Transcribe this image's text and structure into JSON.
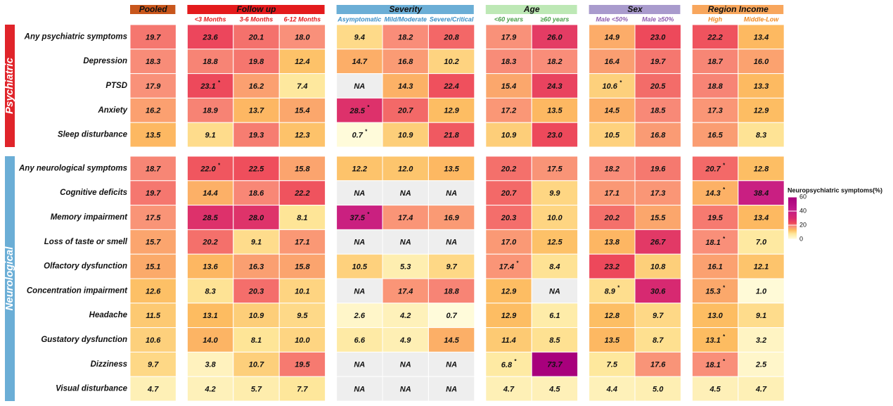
{
  "chart_data": {
    "type": "heatmap",
    "column_groups": [
      {
        "name": "Pooled",
        "color": "#c8561c",
        "label_color": "#111111",
        "columns": [
          null
        ]
      },
      {
        "name": "Follow up",
        "color": "#e41a1c",
        "label_color": "#e41a1c",
        "columns": [
          "<3 Months",
          "3-6 Months",
          "6-12 Months"
        ]
      },
      {
        "name": "Severity",
        "color": "#6baed6",
        "label_color": "#3a8fc7",
        "columns": [
          "Asymptomatic",
          "Mild/Moderate",
          "Severe/Critical"
        ]
      },
      {
        "name": "Age",
        "color": "#bde8b5",
        "label_color": "#4aa04a",
        "columns": [
          "<60 years",
          "≥60 years"
        ]
      },
      {
        "name": "Sex",
        "color": "#a99bcd",
        "label_color": "#8e5fb0",
        "columns": [
          "Male <50%",
          "Male ≥50%"
        ]
      },
      {
        "name": "Region Income",
        "color": "#f8a65c",
        "label_color": "#f08a24",
        "columns": [
          "High",
          "Middle-Low"
        ]
      }
    ],
    "row_groups": [
      {
        "name": "Psychiatric",
        "color": "#e0242a",
        "rows": [
          {
            "name": "Any psychiatric symptoms",
            "values": [
              19.7,
              23.6,
              20.1,
              18.0,
              9.4,
              18.2,
              20.8,
              17.9,
              26.0,
              14.9,
              23.0,
              22.2,
              13.4
            ],
            "value_labels": [
              "19.7",
              "23.6",
              "20.1",
              "18.0",
              "9.4",
              "18.2",
              "20.8",
              "17.9",
              "26.0",
              "14.9",
              "23.0",
              "22.2",
              "13.4"
            ]
          },
          {
            "name": "Depression",
            "values": [
              18.3,
              18.8,
              19.8,
              12.4,
              14.7,
              16.8,
              10.2,
              18.3,
              18.2,
              16.4,
              19.7,
              18.7,
              16.0
            ],
            "value_labels": [
              "18.3",
              "18.8",
              "19.8",
              "12.4",
              "14.7",
              "16.8",
              "10.2",
              "18.3",
              "18.2",
              "16.4",
              "19.7",
              "18.7",
              "16.0"
            ]
          },
          {
            "name": "PTSD",
            "values": [
              17.9,
              23.1,
              16.2,
              7.4,
              null,
              14.3,
              22.4,
              15.4,
              24.3,
              10.6,
              20.5,
              18.8,
              13.3
            ],
            "value_labels": [
              "17.9",
              "23.1*",
              "16.2",
              "7.4",
              "NA",
              "14.3",
              "22.4",
              "15.4",
              "24.3",
              "10.6*",
              "20.5",
              "18.8",
              "13.3"
            ]
          },
          {
            "name": "Anxiety",
            "values": [
              16.2,
              18.9,
              13.7,
              15.4,
              28.5,
              20.7,
              12.9,
              17.2,
              13.5,
              14.5,
              18.5,
              17.3,
              12.9
            ],
            "value_labels": [
              "16.2",
              "18.9",
              "13.7",
              "15.4",
              "28.5*",
              "20.7",
              "12.9",
              "17.2",
              "13.5",
              "14.5",
              "18.5",
              "17.3",
              "12.9"
            ]
          },
          {
            "name": "Sleep disturbance",
            "values": [
              13.5,
              9.1,
              19.3,
              12.3,
              0.7,
              10.9,
              21.8,
              10.9,
              23.0,
              10.5,
              16.8,
              16.5,
              8.3
            ],
            "value_labels": [
              "13.5",
              "9.1",
              "19.3",
              "12.3",
              "0.7*",
              "10.9",
              "21.8",
              "10.9",
              "23.0",
              "10.5",
              "16.8",
              "16.5",
              "8.3"
            ]
          }
        ]
      },
      {
        "name": "Neurological",
        "color": "#6baed6",
        "rows": [
          {
            "name": "Any neurological symptoms",
            "values": [
              18.7,
              22.0,
              22.5,
              15.8,
              12.2,
              12.0,
              13.5,
              20.2,
              17.5,
              18.2,
              19.6,
              20.7,
              12.8
            ],
            "value_labels": [
              "18.7",
              "22.0*",
              "22.5",
              "15.8",
              "12.2",
              "12.0",
              "13.5",
              "20.2",
              "17.5",
              "18.2",
              "19.6",
              "20.7*",
              "12.8"
            ]
          },
          {
            "name": "Cognitive deficits",
            "values": [
              19.7,
              14.4,
              18.6,
              22.2,
              null,
              null,
              null,
              20.7,
              9.9,
              17.1,
              17.3,
              14.3,
              38.4
            ],
            "value_labels": [
              "19.7",
              "14.4",
              "18.6",
              "22.2",
              "NA",
              "NA",
              "NA",
              "20.7",
              "9.9",
              "17.1",
              "17.3",
              "14.3*",
              "38.4"
            ]
          },
          {
            "name": "Memory impairment",
            "values": [
              17.5,
              28.5,
              28.0,
              8.1,
              37.5,
              17.4,
              16.9,
              20.3,
              10.0,
              20.2,
              15.5,
              19.5,
              13.4
            ],
            "value_labels": [
              "17.5",
              "28.5",
              "28.0",
              "8.1",
              "37.5*",
              "17.4",
              "16.9",
              "20.3",
              "10.0",
              "20.2",
              "15.5",
              "19.5",
              "13.4"
            ]
          },
          {
            "name": "Loss of taste or smell",
            "values": [
              15.7,
              20.2,
              9.1,
              17.1,
              null,
              null,
              null,
              17.0,
              12.5,
              13.8,
              26.7,
              18.1,
              7.0
            ],
            "value_labels": [
              "15.7",
              "20.2",
              "9.1",
              "17.1",
              "NA",
              "NA",
              "NA",
              "17.0",
              "12.5",
              "13.8",
              "26.7",
              "18.1*",
              "7.0"
            ]
          },
          {
            "name": "Olfactory dysfunction",
            "values": [
              15.1,
              13.6,
              16.3,
              15.8,
              10.5,
              5.3,
              9.7,
              17.4,
              8.4,
              23.2,
              10.8,
              16.1,
              12.1
            ],
            "value_labels": [
              "15.1",
              "13.6",
              "16.3",
              "15.8",
              "10.5",
              "5.3",
              "9.7",
              "17.4*",
              "8.4",
              "23.2",
              "10.8",
              "16.1",
              "12.1"
            ]
          },
          {
            "name": "Concentration impairment",
            "values": [
              12.6,
              8.3,
              20.3,
              10.1,
              null,
              17.4,
              18.8,
              12.9,
              null,
              8.9,
              30.6,
              15.3,
              1.0
            ],
            "value_labels": [
              "12.6",
              "8.3",
              "20.3",
              "10.1",
              "NA",
              "17.4",
              "18.8",
              "12.9",
              "NA",
              "8.9*",
              "30.6",
              "15.3*",
              "1.0"
            ]
          },
          {
            "name": "Headache",
            "values": [
              11.5,
              13.1,
              10.9,
              9.5,
              2.6,
              4.2,
              0.7,
              12.9,
              6.1,
              12.8,
              9.7,
              13.0,
              9.1
            ],
            "value_labels": [
              "11.5",
              "13.1",
              "10.9",
              "9.5",
              "2.6",
              "4.2",
              "0.7",
              "12.9",
              "6.1",
              "12.8",
              "9.7",
              "13.0",
              "9.1"
            ]
          },
          {
            "name": "Gustatory dysfunction",
            "values": [
              10.6,
              14.0,
              8.1,
              10.0,
              6.6,
              4.9,
              14.5,
              11.4,
              8.5,
              13.5,
              8.7,
              13.1,
              3.2
            ],
            "value_labels": [
              "10.6",
              "14.0",
              "8.1",
              "10.0",
              "6.6",
              "4.9",
              "14.5",
              "11.4",
              "8.5",
              "13.5",
              "8.7",
              "13.1*",
              "3.2"
            ]
          },
          {
            "name": "Dizziness",
            "values": [
              9.7,
              3.8,
              10.7,
              19.5,
              null,
              null,
              null,
              6.8,
              73.7,
              7.5,
              17.6,
              18.1,
              2.5
            ],
            "value_labels": [
              "9.7",
              "3.8",
              "10.7",
              "19.5",
              "NA",
              "NA",
              "NA",
              "6.8*",
              "73.7",
              "7.5",
              "17.6",
              "18.1*",
              "2.5"
            ]
          },
          {
            "name": "Visual disturbance",
            "values": [
              4.7,
              4.2,
              5.7,
              7.7,
              null,
              null,
              null,
              4.7,
              4.5,
              4.4,
              5.0,
              4.5,
              4.7
            ],
            "value_labels": [
              "4.7",
              "4.2",
              "5.7",
              "7.7",
              "NA",
              "NA",
              "NA",
              "4.7",
              "4.5",
              "4.4",
              "5.0",
              "4.5",
              "4.7"
            ]
          }
        ]
      }
    ],
    "colorbar": {
      "title": "Neuropsychiatric symptoms(%)",
      "lim": [
        0,
        60
      ],
      "ticks": [
        0,
        20,
        40,
        60
      ]
    }
  }
}
